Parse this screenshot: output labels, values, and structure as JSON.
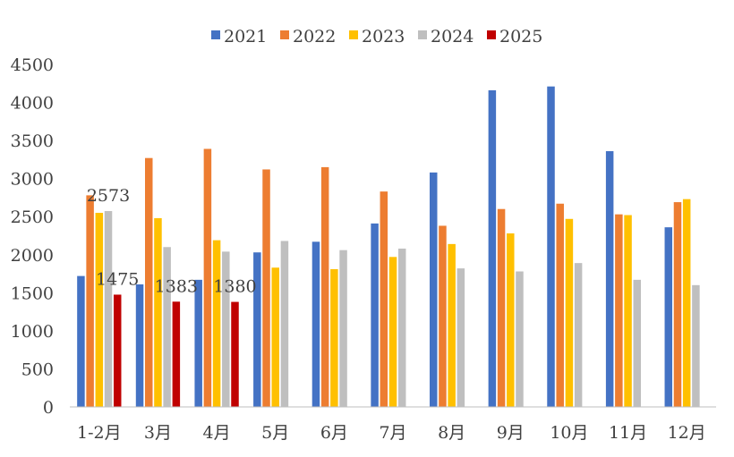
{
  "chart_data": {
    "type": "bar",
    "categories": [
      "1-2月",
      "3月",
      "4月",
      "5月",
      "6月",
      "7月",
      "8月",
      "9月",
      "10月",
      "11月",
      "12月"
    ],
    "series": [
      {
        "name": "2021",
        "color": "#4472C4",
        "values": [
          1720,
          1610,
          1670,
          2030,
          2170,
          2410,
          3080,
          4160,
          4210,
          3360,
          2360
        ]
      },
      {
        "name": "2022",
        "color": "#ED7D31",
        "values": [
          2780,
          3270,
          3390,
          3120,
          3150,
          2830,
          2380,
          2600,
          2670,
          2530,
          2690
        ]
      },
      {
        "name": "2023",
        "color": "#FFC000",
        "values": [
          2550,
          2480,
          2190,
          1830,
          1810,
          1970,
          2140,
          2280,
          2470,
          2520,
          2730
        ]
      },
      {
        "name": "2024",
        "color": "#BFBFBF",
        "values": [
          2573,
          2100,
          2040,
          2180,
          2060,
          2080,
          1820,
          1780,
          1890,
          1670,
          1600
        ]
      },
      {
        "name": "2025",
        "color": "#C00000",
        "values": [
          1475,
          1383,
          1380,
          null,
          null,
          null,
          null,
          null,
          null,
          null,
          null
        ]
      }
    ],
    "data_labels": [
      {
        "category": "1-2月",
        "series": "2024",
        "text": "2573"
      },
      {
        "category": "1-2月",
        "series": "2025",
        "text": "1475"
      },
      {
        "category": "3月",
        "series": "2025",
        "text": "1383"
      },
      {
        "category": "4月",
        "series": "2025",
        "text": "1380"
      }
    ],
    "yticks": [
      "0",
      "500",
      "1000",
      "1500",
      "2000",
      "2500",
      "3000",
      "3500",
      "4000",
      "4500"
    ],
    "ylim": [
      0,
      4500
    ],
    "title": "",
    "xlabel": "",
    "ylabel": "",
    "grid": false,
    "legend_position": "top-center"
  }
}
